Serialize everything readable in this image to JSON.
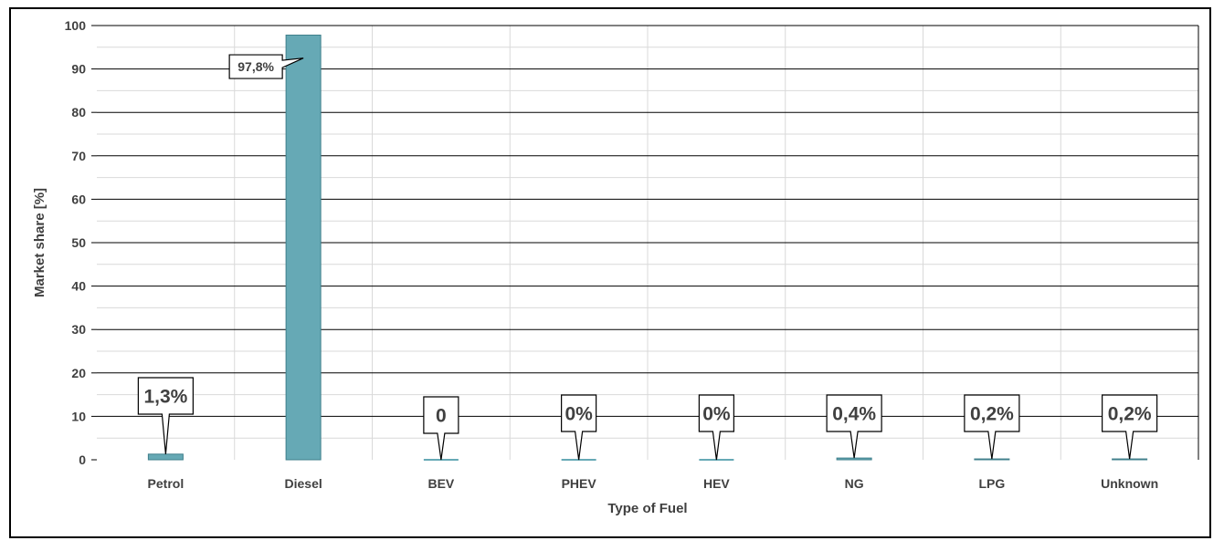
{
  "chart_data": {
    "type": "bar",
    "categories": [
      "Petrol",
      "Diesel",
      "BEV",
      "PHEV",
      "HEV",
      "NG",
      "LPG",
      "Unknown"
    ],
    "values": [
      1.3,
      97.8,
      0,
      0,
      0,
      0.4,
      0.2,
      0.2
    ],
    "data_labels": [
      "1,3%",
      "97,8%",
      "0",
      "0%",
      "0%",
      "0,4%",
      "0,2%",
      "0,2%"
    ],
    "title": "",
    "xlabel": "Type of Fuel",
    "ylabel": "Market share [%]",
    "ylim": [
      0,
      100
    ],
    "yticks": [
      0,
      10,
      20,
      30,
      40,
      50,
      60,
      70,
      80,
      90,
      100
    ],
    "grid": true,
    "legend": "none",
    "colors": {
      "bar": "#66a9b5",
      "bar_edge": "#3f7f8b",
      "major_grid": "#000000",
      "minor_grid": "#d9d9d9",
      "text": "#404040"
    }
  }
}
